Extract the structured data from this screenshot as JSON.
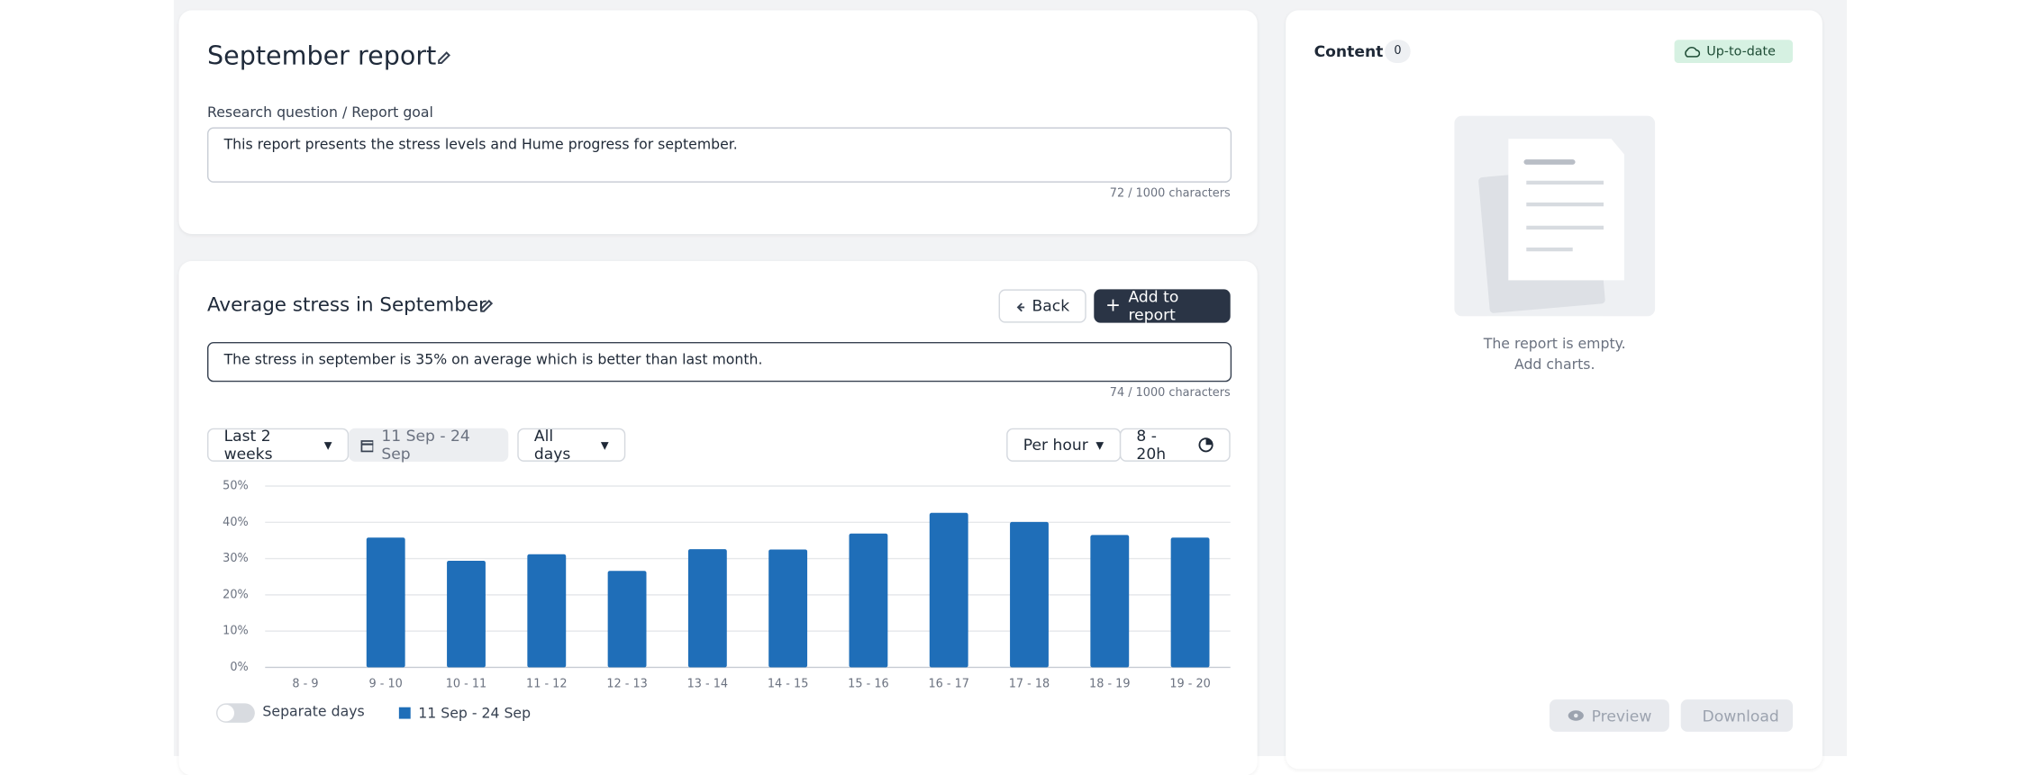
{
  "report": {
    "title": "September report",
    "goal_label": "Research question / Report goal",
    "goal": "This report presents the stress levels and Hume progress for september.",
    "goal_count": "72 / 1000 characters"
  },
  "chart_card": {
    "title": "Average stress in September",
    "back": "Back",
    "add": "Add to report",
    "description": "The stress in september is 35% on average which is better than last month.",
    "description_count": "74 / 1000 characters",
    "range": "Last 2 weeks",
    "dates": "11 Sep - 24 Sep",
    "days": "All days",
    "resolution": "Per hour",
    "hours": "8 - 20h",
    "toggle": "Separate days"
  },
  "chart_data": {
    "type": "bar",
    "categories": [
      "8 - 9",
      "9 - 10",
      "10 - 11",
      "11 - 12",
      "12 - 13",
      "13 - 14",
      "14 - 15",
      "15 - 16",
      "16 - 17",
      "17 - 18",
      "18 - 19",
      "19 - 20"
    ],
    "series": [
      {
        "name": "11 Sep - 24 Sep",
        "color": "#1f6eb8",
        "values": [
          null,
          35.8,
          29.4,
          31.2,
          26.6,
          32.6,
          32.5,
          36.9,
          42.6,
          40.1,
          36.5,
          35.8
        ]
      }
    ],
    "ylim": [
      0,
      50
    ],
    "yticks": [
      {
        "value": 0,
        "label": "0%"
      },
      {
        "value": 10,
        "label": "10%"
      },
      {
        "value": 20,
        "label": "20%"
      },
      {
        "value": 30,
        "label": "30%"
      },
      {
        "value": 40,
        "label": "40%"
      },
      {
        "value": 50,
        "label": "50%"
      }
    ],
    "grid": true
  },
  "content": {
    "title": "Content",
    "count": 0,
    "status": "Up-to-date",
    "empty_line1": "The report is empty.",
    "empty_line2": "Add charts.",
    "preview": "Preview",
    "download": "Download"
  }
}
